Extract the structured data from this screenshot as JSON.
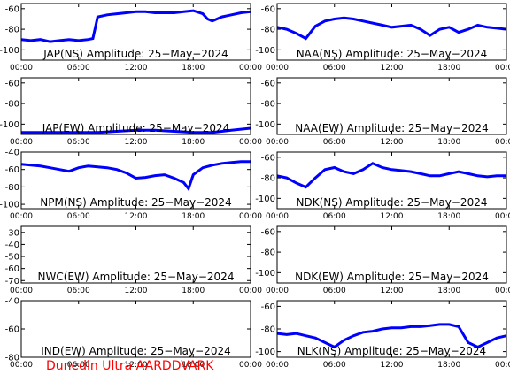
{
  "footer": "Dunedin Ultra AARDDVARK",
  "xticks": [
    "00:00",
    "06:00",
    "12:00",
    "18:00",
    "00:00"
  ],
  "colors": {
    "line": "#0000ff",
    "axes": "#000000",
    "title": "#000000",
    "footer": "#ff0000"
  },
  "chart_data": [
    {
      "type": "line",
      "title": "JAP(NS) Amplitude: 25−May−2024",
      "ylim": [
        -110,
        -55
      ],
      "yticks": [
        -60,
        -80,
        -100
      ],
      "series": [
        {
          "x": [
            0,
            1,
            2,
            3,
            4,
            5,
            6,
            7,
            7.5,
            8,
            9,
            10,
            11,
            12,
            13,
            14,
            15,
            16,
            17,
            18,
            19,
            19.5,
            20,
            21,
            22,
            23,
            24
          ],
          "y": [
            -90,
            -91,
            -90,
            -92,
            -91,
            -90,
            -91,
            -90,
            -89,
            -68,
            -66,
            -65,
            -64,
            -63,
            -63,
            -64,
            -64,
            -64,
            -63,
            -62,
            -65,
            -70,
            -72,
            -68,
            -66,
            -64,
            -63
          ]
        }
      ]
    },
    {
      "type": "line",
      "title": "NAA(NS) Amplitude: 25−May−2024",
      "ylim": [
        -110,
        -55
      ],
      "yticks": [
        -60,
        -80,
        -100
      ],
      "series": [
        {
          "x": [
            0,
            1,
            2,
            3,
            4,
            5,
            6,
            7,
            8,
            9,
            10,
            11,
            12,
            13,
            14,
            15,
            16,
            17,
            18,
            19,
            20,
            21,
            22,
            23,
            24
          ],
          "y": [
            -78,
            -80,
            -84,
            -89,
            -77,
            -72,
            -70,
            -69,
            -70,
            -72,
            -74,
            -76,
            -78,
            -77,
            -76,
            -80,
            -86,
            -80,
            -78,
            -83,
            -80,
            -76,
            -78,
            -79,
            -80
          ]
        }
      ]
    },
    {
      "type": "line",
      "title": "JAP(EW) Amplitude: 25−May−2024",
      "ylim": [
        -110,
        -55
      ],
      "yticks": [
        -60,
        -80,
        -100
      ],
      "series": [
        {
          "x": [
            0,
            2,
            4,
            6,
            8,
            10,
            12,
            14,
            16,
            18,
            20,
            22,
            24
          ],
          "y": [
            -108,
            -108,
            -108,
            -108,
            -108,
            -107,
            -106,
            -106,
            -107,
            -108,
            -108,
            -106,
            -104
          ]
        }
      ]
    },
    {
      "type": "line",
      "title": "NAA(EW) Amplitude: 25−May−2024",
      "ylim": [
        -110,
        -55
      ],
      "yticks": [
        -60,
        -80,
        -100
      ],
      "series": [
        {
          "x": [],
          "y": []
        }
      ]
    },
    {
      "type": "line",
      "title": "NPM(NS) Amplitude: 25−May−2024",
      "ylim": [
        -105,
        -40
      ],
      "yticks": [
        -40,
        -60,
        -80,
        -100
      ],
      "series": [
        {
          "x": [
            0,
            1,
            2,
            3,
            4,
            5,
            6,
            7,
            8,
            9,
            10,
            11,
            12,
            13,
            14,
            15,
            16,
            17,
            17.5,
            18,
            19,
            20,
            21,
            22,
            23,
            24
          ],
          "y": [
            -54,
            -55,
            -56,
            -58,
            -60,
            -62,
            -58,
            -56,
            -57,
            -58,
            -60,
            -64,
            -70,
            -69,
            -67,
            -66,
            -70,
            -75,
            -82,
            -66,
            -58,
            -55,
            -53,
            -52,
            -51,
            -51
          ]
        }
      ]
    },
    {
      "type": "line",
      "title": "NDK(NS) Amplitude: 25−May−2024",
      "ylim": [
        -110,
        -55
      ],
      "yticks": [
        -60,
        -80,
        -100
      ],
      "series": [
        {
          "x": [
            0,
            1,
            2,
            3,
            4,
            5,
            6,
            7,
            8,
            9,
            10,
            11,
            12,
            13,
            14,
            15,
            16,
            17,
            18,
            19,
            20,
            21,
            22,
            23,
            24
          ],
          "y": [
            -78,
            -80,
            -85,
            -89,
            -80,
            -72,
            -70,
            -74,
            -76,
            -72,
            -66,
            -70,
            -72,
            -73,
            -74,
            -76,
            -78,
            -78,
            -76,
            -74,
            -76,
            -78,
            -79,
            -78,
            -78
          ]
        }
      ]
    },
    {
      "type": "line",
      "title": "NWC(EW) Amplitude: 25−May−2024",
      "ylim": [
        -72,
        -25
      ],
      "yticks": [
        -30,
        -40,
        -50,
        -60,
        -70
      ],
      "series": [
        {
          "x": [],
          "y": []
        }
      ]
    },
    {
      "type": "line",
      "title": "NDK(EW) Amplitude: 25−May−2024",
      "ylim": [
        -110,
        -55
      ],
      "yticks": [
        -60,
        -80,
        -100
      ],
      "series": [
        {
          "x": [],
          "y": []
        }
      ]
    },
    {
      "type": "line",
      "title": "IND(EW) Amplitude: 25−May−2024",
      "ylim": [
        -80,
        -40
      ],
      "yticks": [
        -40,
        -60,
        -80
      ],
      "series": [
        {
          "x": [],
          "y": []
        }
      ]
    },
    {
      "type": "line",
      "title": "NLK(NS) Amplitude: 25−May−2024",
      "ylim": [
        -105,
        -55
      ],
      "yticks": [
        -60,
        -80,
        -100
      ],
      "series": [
        {
          "x": [
            0,
            1,
            2,
            3,
            4,
            5,
            6,
            7,
            8,
            9,
            10,
            11,
            12,
            13,
            14,
            15,
            16,
            17,
            18,
            19,
            20,
            21,
            22,
            23,
            24
          ],
          "y": [
            -84,
            -85,
            -84,
            -86,
            -88,
            -92,
            -96,
            -90,
            -86,
            -83,
            -82,
            -80,
            -79,
            -79,
            -78,
            -78,
            -77,
            -76,
            -76,
            -78,
            -92,
            -96,
            -92,
            -88,
            -86
          ]
        }
      ]
    }
  ]
}
